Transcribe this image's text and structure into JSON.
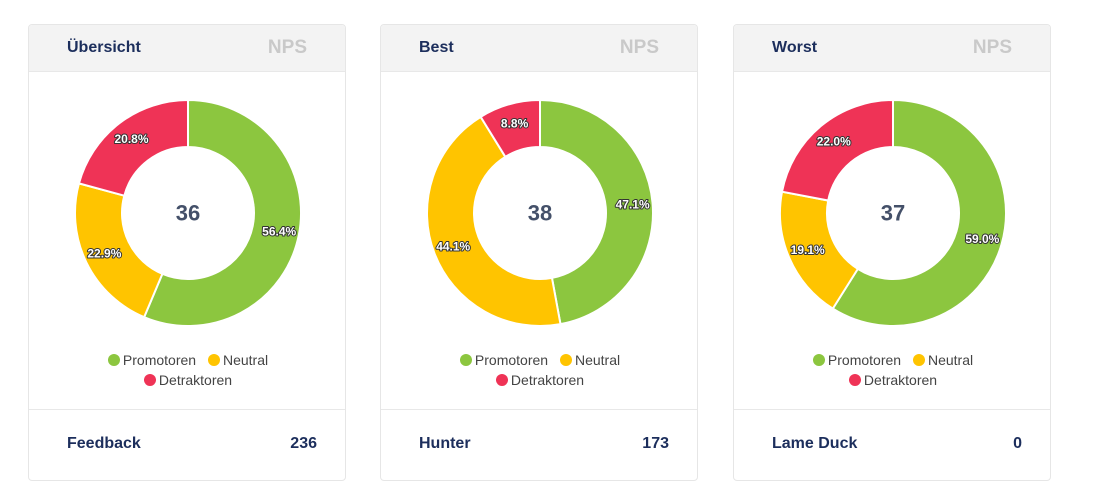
{
  "colors": {
    "promotoren": "#8cc63f",
    "neutral": "#ffc400",
    "detraktoren": "#ef3356"
  },
  "nps_label": "NPS",
  "legend": {
    "promotoren": "Promotoren",
    "neutral": "Neutral",
    "detraktoren": "Detraktoren"
  },
  "cards": [
    {
      "title": "Übersicht",
      "score": "36",
      "footer_label": "Feedback",
      "footer_value": "236"
    },
    {
      "title": "Best",
      "score": "38",
      "footer_label": "Hunter",
      "footer_value": "173"
    },
    {
      "title": "Worst",
      "score": "37",
      "footer_label": "Lame Duck",
      "footer_value": "0"
    }
  ],
  "chart_data": [
    {
      "type": "pie",
      "categories": [
        "Promotoren",
        "Neutral",
        "Detraktoren"
      ],
      "values": [
        56.4,
        22.9,
        20.8
      ],
      "labels": [
        "56.4%",
        "22.9%",
        "20.8%"
      ],
      "center_text": "36",
      "legend_position": "bottom"
    },
    {
      "type": "pie",
      "categories": [
        "Promotoren",
        "Neutral",
        "Detraktoren"
      ],
      "values": [
        47.1,
        44.1,
        8.8
      ],
      "labels": [
        "47.1%",
        "44.1%",
        "8.8%"
      ],
      "center_text": "38",
      "legend_position": "bottom"
    },
    {
      "type": "pie",
      "categories": [
        "Promotoren",
        "Neutral",
        "Detraktoren"
      ],
      "values": [
        59.0,
        19.1,
        22.0
      ],
      "labels": [
        "59.0%",
        "19.1%",
        "22.0%"
      ],
      "center_text": "37",
      "legend_position": "bottom"
    }
  ]
}
